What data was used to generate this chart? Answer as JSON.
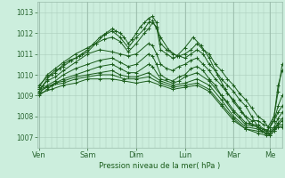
{
  "bg_color": "#cceedd",
  "grid_color_minor": "#aaccbb",
  "grid_color_major": "#99bbaa",
  "line_color": "#1a5c1a",
  "marker_color": "#1a5c1a",
  "xlabel": "Pression niveau de la mer( hPa )",
  "xlabel_color": "#1a5c1a",
  "tick_color": "#2a6632",
  "ylim": [
    1006.5,
    1013.5
  ],
  "yticks": [
    1007,
    1008,
    1009,
    1010,
    1011,
    1012,
    1013
  ],
  "x_days": [
    "Ven",
    "Sam",
    "Dim",
    "Lun",
    "Mar",
    "Me"
  ],
  "x_day_positions": [
    0,
    24,
    48,
    72,
    96,
    114
  ],
  "xlim": [
    -1,
    120
  ],
  "series": [
    [
      0,
      1009.2,
      2,
      1009.5,
      4,
      1009.8,
      6,
      1010.0,
      8,
      1010.1,
      10,
      1010.3,
      12,
      1010.5,
      15,
      1010.7,
      18,
      1010.8,
      21,
      1011.0,
      24,
      1011.2,
      27,
      1011.5,
      30,
      1011.8,
      33,
      1012.0,
      36,
      1012.2,
      38,
      1012.1,
      40,
      1012.0,
      42,
      1011.8,
      44,
      1011.5,
      46,
      1011.7,
      48,
      1012.0,
      50,
      1012.3,
      52,
      1012.5,
      54,
      1012.7,
      56,
      1012.8,
      58,
      1012.5,
      60,
      1011.5,
      63,
      1011.2,
      66,
      1011.0,
      69,
      1010.9,
      72,
      1010.8,
      75,
      1011.0,
      78,
      1011.2,
      81,
      1011.0,
      84,
      1010.5,
      87,
      1010.2,
      90,
      1009.8,
      93,
      1009.5,
      96,
      1009.2,
      99,
      1008.8,
      102,
      1008.5,
      105,
      1008.0,
      108,
      1007.5,
      110,
      1007.3,
      112,
      1007.2,
      114,
      1007.5,
      116,
      1008.0,
      118,
      1009.5,
      120,
      1010.2
    ],
    [
      0,
      1009.4,
      4,
      1010.0,
      8,
      1010.3,
      12,
      1010.6,
      18,
      1011.0,
      24,
      1011.3,
      28,
      1011.5,
      32,
      1011.7,
      36,
      1011.8,
      40,
      1011.6,
      44,
      1011.1,
      48,
      1011.5,
      52,
      1012.0,
      54,
      1012.2,
      56,
      1012.5,
      58,
      1012.3,
      60,
      1011.2,
      63,
      1011.0,
      66,
      1010.8,
      69,
      1010.9,
      72,
      1011.0,
      75,
      1011.2,
      78,
      1011.5,
      81,
      1011.2,
      84,
      1011.0,
      87,
      1010.5,
      90,
      1010.2,
      93,
      1009.8,
      96,
      1009.5,
      99,
      1009.1,
      102,
      1008.8,
      105,
      1008.4,
      108,
      1008.0,
      111,
      1007.8,
      113,
      1007.5,
      116,
      1008.0,
      118,
      1009.2,
      120,
      1010.5
    ],
    [
      0,
      1009.5,
      4,
      1009.9,
      8,
      1010.2,
      12,
      1010.4,
      16,
      1010.7,
      20,
      1010.9,
      24,
      1011.1,
      28,
      1011.5,
      32,
      1011.9,
      36,
      1012.1,
      40,
      1011.8,
      44,
      1011.3,
      48,
      1011.8,
      52,
      1012.2,
      54,
      1012.5,
      56,
      1012.6,
      58,
      1012.2,
      60,
      1011.8,
      64,
      1011.2,
      68,
      1010.9,
      72,
      1011.3,
      76,
      1011.8,
      80,
      1011.4,
      84,
      1010.8,
      88,
      1010.0,
      92,
      1009.3,
      96,
      1008.7,
      100,
      1008.2,
      104,
      1007.7,
      108,
      1007.5,
      112,
      1007.3,
      114,
      1007.5,
      116,
      1007.8,
      118,
      1008.5,
      120,
      1009.0
    ],
    [
      0,
      1009.3,
      4,
      1009.7,
      8,
      1009.9,
      12,
      1010.2,
      18,
      1010.6,
      24,
      1011.0,
      30,
      1011.2,
      36,
      1011.1,
      40,
      1011.0,
      44,
      1010.9,
      48,
      1011.0,
      54,
      1011.5,
      56,
      1011.4,
      58,
      1011.0,
      60,
      1010.5,
      63,
      1010.3,
      66,
      1010.2,
      69,
      1010.4,
      72,
      1010.5,
      75,
      1010.7,
      78,
      1010.8,
      81,
      1010.5,
      84,
      1010.2,
      87,
      1009.8,
      90,
      1009.5,
      93,
      1009.1,
      96,
      1008.8,
      99,
      1008.4,
      102,
      1008.0,
      105,
      1007.8,
      108,
      1007.8,
      111,
      1007.6,
      114,
      1007.5,
      116,
      1007.8,
      118,
      1008.2,
      120,
      1008.5
    ],
    [
      0,
      1009.1,
      4,
      1009.5,
      8,
      1009.7,
      12,
      1010.0,
      18,
      1010.3,
      24,
      1010.5,
      30,
      1010.7,
      36,
      1010.8,
      40,
      1010.6,
      44,
      1010.4,
      48,
      1010.5,
      54,
      1011.0,
      56,
      1010.9,
      58,
      1010.5,
      60,
      1010.0,
      63,
      1009.8,
      66,
      1009.7,
      69,
      1009.9,
      72,
      1010.0,
      75,
      1010.3,
      78,
      1010.4,
      81,
      1010.2,
      84,
      1009.8,
      87,
      1009.5,
      90,
      1009.0,
      93,
      1008.7,
      96,
      1008.3,
      99,
      1008.0,
      102,
      1007.7,
      105,
      1007.6,
      108,
      1007.6,
      111,
      1007.4,
      114,
      1007.3,
      116,
      1007.5,
      118,
      1007.9,
      120,
      1008.2
    ],
    [
      0,
      1009.0,
      4,
      1009.3,
      8,
      1009.6,
      12,
      1009.8,
      18,
      1010.0,
      24,
      1010.2,
      30,
      1010.4,
      36,
      1010.5,
      40,
      1010.3,
      44,
      1010.1,
      48,
      1010.1,
      54,
      1010.5,
      56,
      1010.4,
      60,
      1009.8,
      66,
      1009.6,
      69,
      1009.7,
      72,
      1009.9,
      78,
      1010.1,
      84,
      1009.7,
      90,
      1009.0,
      96,
      1008.2,
      102,
      1007.6,
      108,
      1007.5,
      114,
      1007.2,
      116,
      1007.4,
      118,
      1007.7,
      120,
      1007.9
    ],
    [
      0,
      1009.2,
      4,
      1009.4,
      8,
      1009.6,
      12,
      1009.7,
      18,
      1009.9,
      24,
      1010.0,
      30,
      1010.1,
      36,
      1010.2,
      40,
      1010.0,
      44,
      1009.9,
      48,
      1009.9,
      54,
      1010.1,
      60,
      1009.7,
      66,
      1009.5,
      72,
      1009.6,
      78,
      1009.8,
      84,
      1009.5,
      90,
      1008.8,
      96,
      1008.0,
      102,
      1007.5,
      108,
      1007.4,
      114,
      1007.1,
      116,
      1007.3,
      118,
      1007.6,
      120,
      1007.8
    ],
    [
      0,
      1009.3,
      6,
      1009.5,
      12,
      1009.6,
      18,
      1009.8,
      24,
      1009.9,
      30,
      1010.0,
      36,
      1010.0,
      42,
      1009.8,
      48,
      1009.8,
      54,
      1009.9,
      60,
      1009.6,
      66,
      1009.4,
      72,
      1009.5,
      78,
      1009.6,
      84,
      1009.3,
      90,
      1008.6,
      96,
      1007.9,
      102,
      1007.4,
      108,
      1007.3,
      112,
      1007.2,
      114,
      1007.2,
      116,
      1007.4,
      118,
      1007.6,
      120,
      1007.6
    ],
    [
      0,
      1009.1,
      6,
      1009.3,
      12,
      1009.5,
      18,
      1009.6,
      24,
      1009.8,
      30,
      1009.8,
      36,
      1009.8,
      42,
      1009.7,
      48,
      1009.6,
      54,
      1009.7,
      60,
      1009.5,
      66,
      1009.3,
      72,
      1009.4,
      78,
      1009.5,
      84,
      1009.2,
      90,
      1008.5,
      96,
      1007.8,
      102,
      1007.4,
      108,
      1007.2,
      112,
      1007.1,
      114,
      1007.1,
      116,
      1007.3,
      118,
      1007.5,
      120,
      1007.5
    ]
  ]
}
